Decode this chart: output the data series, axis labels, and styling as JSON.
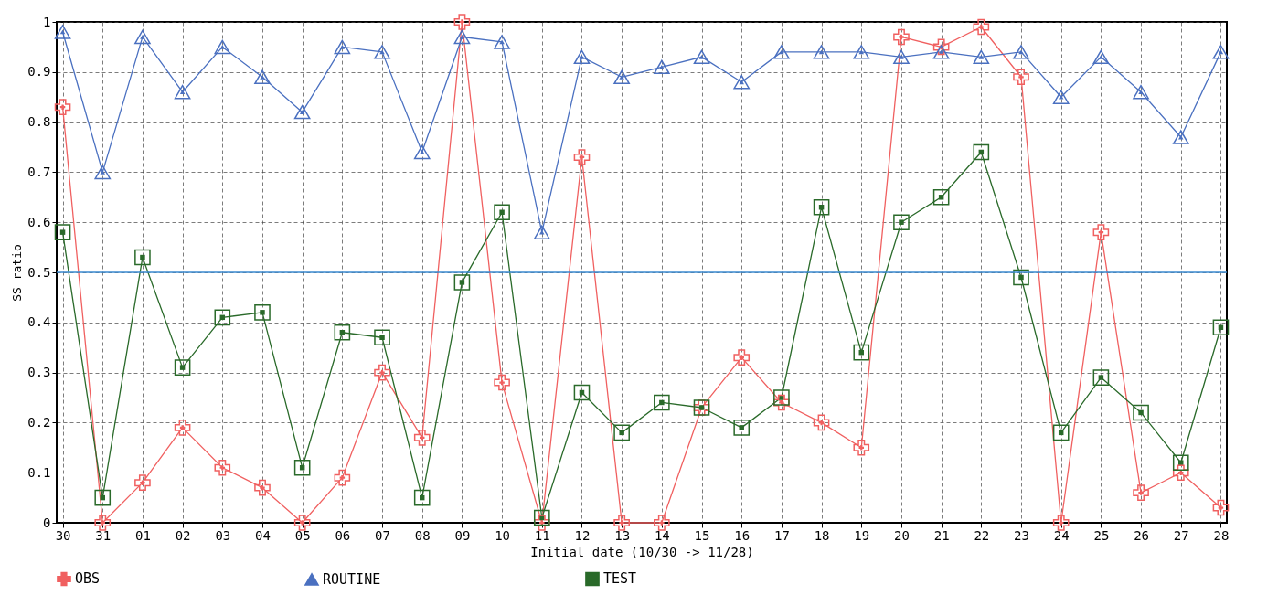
{
  "chart_data": {
    "type": "line",
    "xlabel": "Initial date (10/30 -> 11/28)",
    "ylabel": "SS ratio",
    "categories": [
      "30",
      "31",
      "01",
      "02",
      "03",
      "04",
      "05",
      "06",
      "07",
      "08",
      "09",
      "10",
      "11",
      "12",
      "13",
      "14",
      "15",
      "16",
      "17",
      "18",
      "19",
      "20",
      "21",
      "22",
      "23",
      "24",
      "25",
      "26",
      "27",
      "28"
    ],
    "series": [
      {
        "name": "OBS",
        "color": "#f06060",
        "marker": "cross",
        "values": [
          0.83,
          0.0,
          0.08,
          0.19,
          0.11,
          0.07,
          0.0,
          0.09,
          0.3,
          0.17,
          1.0,
          0.28,
          0.0,
          0.73,
          0.0,
          0.0,
          0.23,
          0.33,
          0.24,
          0.2,
          0.15,
          0.97,
          0.95,
          0.99,
          0.89,
          0.0,
          0.58,
          0.06,
          0.1,
          0.03
        ]
      },
      {
        "name": "ROUTINE",
        "color": "#4a70c0",
        "marker": "triangle",
        "values": [
          0.98,
          0.7,
          0.97,
          0.86,
          0.95,
          0.89,
          0.82,
          0.95,
          0.94,
          0.74,
          0.97,
          0.96,
          0.58,
          0.93,
          0.89,
          0.91,
          0.93,
          0.88,
          0.94,
          0.94,
          0.94,
          0.93,
          0.94,
          0.93,
          0.94,
          0.85,
          0.93,
          0.86,
          0.77,
          0.94
        ]
      },
      {
        "name": "TEST",
        "color": "#2a6a2a",
        "marker": "square",
        "values": [
          0.58,
          0.05,
          0.53,
          0.31,
          0.41,
          0.42,
          0.11,
          0.38,
          0.37,
          0.05,
          0.48,
          0.62,
          0.01,
          0.26,
          0.18,
          0.24,
          0.23,
          0.19,
          0.25,
          0.63,
          0.34,
          0.6,
          0.65,
          0.74,
          0.49,
          0.18,
          0.29,
          0.22,
          0.12,
          0.39
        ]
      }
    ],
    "ylim": [
      0,
      1
    ],
    "yticks": [
      0,
      0.1,
      0.2,
      0.3,
      0.4,
      0.5,
      0.6,
      0.7,
      0.8,
      0.9,
      1
    ],
    "ref_lines": [
      {
        "axis": "y",
        "value": 0.5,
        "color": "#3a8ad0"
      }
    ],
    "grid": true,
    "legend": "bottom"
  }
}
